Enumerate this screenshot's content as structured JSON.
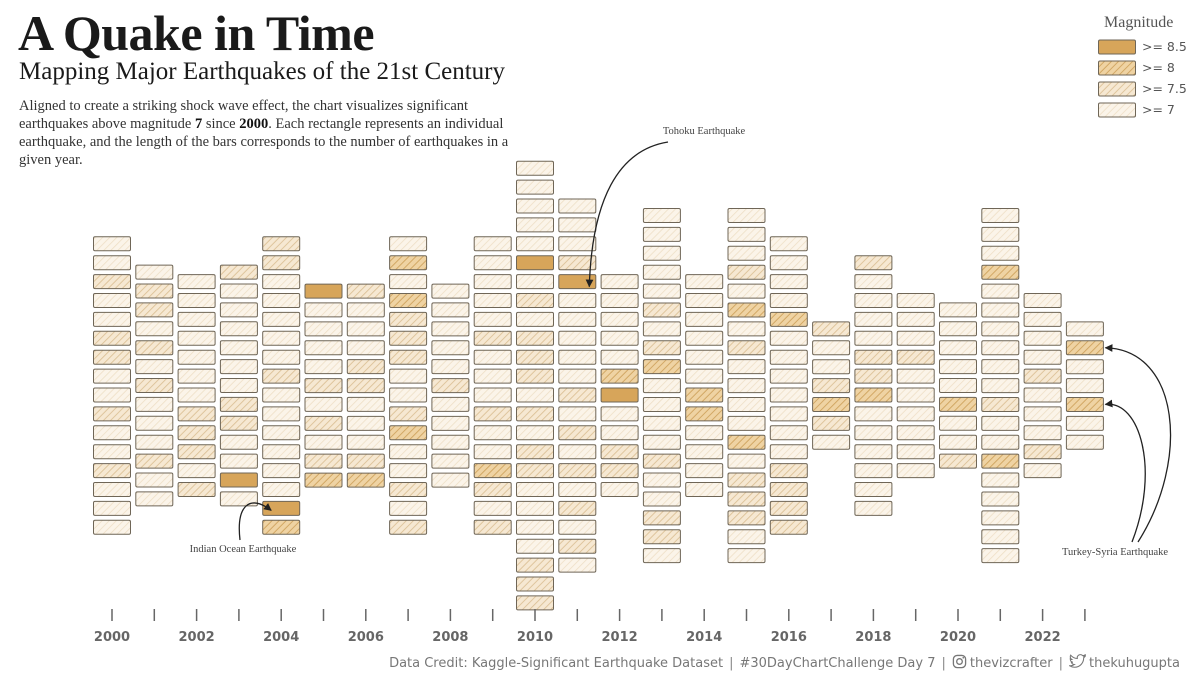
{
  "title": "A Quake in Time",
  "subtitle": "Mapping Major Earthquakes of the 21st Century",
  "description": {
    "part1": "Aligned to create a striking shock wave effect, the chart visualizes significant earthquakes above magnitude ",
    "magnitude": "7",
    "part2": " since ",
    "since_year": "2000",
    "part3": ". Each rectangle represents an individual earthquake, and the length of the bars corresponds to the number of earthquakes in a given year."
  },
  "legend": {
    "title": "Magnitude",
    "items": [
      {
        "label": ">= 8.5",
        "level": 3
      },
      {
        "label": ">= 8",
        "level": 2
      },
      {
        "label": ">= 7.5",
        "level": 1
      },
      {
        "label": ">= 7",
        "level": 0
      }
    ]
  },
  "footer": {
    "credit": "Data Credit: Kaggle-Significant Earthquake Dataset",
    "challenge": "#30DayChartChallenge Day 7",
    "instagram": "thevizcrafter",
    "twitter": "thekuhugupta"
  },
  "colors": {
    "level0_bg": "#fbf4e9",
    "level1_bg": "#f6e8d2",
    "level2_bg": "#efd3a3",
    "level3_bg": "#d7a55a",
    "hatch": "#d6b989",
    "outline": "#6f6657",
    "axis": "#666666",
    "annotation": "#222222"
  },
  "chart_data": {
    "type": "stacked-rectangles",
    "description": "Each rectangle is one earthquake of magnitude >= 7; columns are years, stacks centered vertically",
    "x": [
      2000,
      2001,
      2002,
      2003,
      2004,
      2005,
      2006,
      2007,
      2008,
      2009,
      2010,
      2011,
      2012,
      2013,
      2014,
      2015,
      2016,
      2017,
      2018,
      2019,
      2020,
      2021,
      2022,
      2023
    ],
    "x_tick_labels": [
      "2000",
      "2002",
      "2004",
      "2006",
      "2008",
      "2010",
      "2012",
      "2014",
      "2016",
      "2018",
      "2020",
      "2022"
    ],
    "counts": [
      16,
      13,
      12,
      13,
      16,
      11,
      11,
      16,
      11,
      16,
      24,
      20,
      12,
      19,
      12,
      19,
      16,
      7,
      14,
      10,
      9,
      19,
      10,
      7
    ],
    "magnitude_levels": [
      [
        0,
        0,
        1,
        0,
        0,
        1,
        1,
        0,
        0,
        1,
        0,
        0,
        1,
        0,
        0,
        0
      ],
      [
        0,
        1,
        1,
        0,
        1,
        0,
        1,
        0,
        0,
        0,
        1,
        0,
        0
      ],
      [
        0,
        0,
        0,
        0,
        0,
        0,
        0,
        1,
        1,
        1,
        0,
        1
      ],
      [
        1,
        0,
        0,
        0,
        0,
        0,
        0,
        1,
        1,
        0,
        0,
        3,
        0
      ],
      [
        1,
        1,
        0,
        0,
        0,
        0,
        0,
        1,
        0,
        0,
        0,
        0,
        0,
        0,
        3,
        2
      ],
      [
        3,
        0,
        0,
        0,
        0,
        1,
        0,
        1,
        0,
        1,
        2
      ],
      [
        1,
        0,
        0,
        0,
        1,
        1,
        0,
        0,
        0,
        1,
        2
      ],
      [
        0,
        2,
        0,
        2,
        1,
        1,
        1,
        0,
        0,
        1,
        2,
        0,
        0,
        1,
        0,
        1
      ],
      [
        0,
        0,
        0,
        0,
        0,
        1,
        0,
        0,
        0,
        0,
        0
      ],
      [
        0,
        0,
        0,
        0,
        0,
        1,
        0,
        0,
        0,
        1,
        0,
        0,
        2,
        1,
        0,
        1
      ],
      [
        0,
        0,
        0,
        0,
        0,
        3,
        0,
        1,
        0,
        1,
        1,
        1,
        0,
        1,
        0,
        1,
        1,
        0,
        0,
        0,
        0,
        1,
        1,
        1
      ],
      [
        0,
        0,
        0,
        1,
        3,
        0,
        0,
        0,
        0,
        0,
        1,
        0,
        1,
        0,
        1,
        0,
        1,
        0,
        1,
        0
      ],
      [
        0,
        0,
        0,
        0,
        0,
        2,
        3,
        0,
        0,
        1,
        1,
        0
      ],
      [
        0,
        0,
        0,
        0,
        0,
        1,
        0,
        1,
        2,
        0,
        0,
        0,
        0,
        1,
        0,
        0,
        1,
        1,
        0
      ],
      [
        0,
        0,
        0,
        0,
        0,
        0,
        2,
        2,
        0,
        0,
        0,
        0
      ],
      [
        0,
        0,
        0,
        1,
        0,
        2,
        0,
        1,
        0,
        0,
        0,
        0,
        2,
        0,
        1,
        1,
        1,
        0,
        0
      ],
      [
        0,
        0,
        0,
        0,
        2,
        0,
        0,
        0,
        0,
        0,
        0,
        0,
        1,
        1,
        1,
        1
      ],
      [
        1,
        0,
        0,
        1,
        2,
        1,
        0
      ],
      [
        1,
        0,
        0,
        0,
        0,
        1,
        1,
        2,
        0,
        0,
        0,
        0,
        0,
        0
      ],
      [
        0,
        0,
        0,
        1,
        0,
        0,
        0,
        0,
        0,
        0
      ],
      [
        0,
        0,
        0,
        0,
        0,
        2,
        0,
        0,
        1
      ],
      [
        0,
        0,
        0,
        2,
        0,
        0,
        0,
        0,
        0,
        0,
        1,
        0,
        0,
        2,
        0,
        0,
        0,
        0,
        0
      ],
      [
        0,
        0,
        0,
        0,
        1,
        0,
        0,
        0,
        1,
        0
      ],
      [
        0,
        2,
        0,
        0,
        2,
        0,
        0
      ]
    ],
    "annotations": [
      {
        "label": "Indian Ocean Earthquake",
        "year": 2004,
        "magnitude_level": 3
      },
      {
        "label": "Tohoku Earthquake",
        "year": 2011,
        "magnitude_level": 3
      },
      {
        "label": "Turkey-Syria Earthquake",
        "year": 2023,
        "magnitude_level": 2
      }
    ]
  }
}
